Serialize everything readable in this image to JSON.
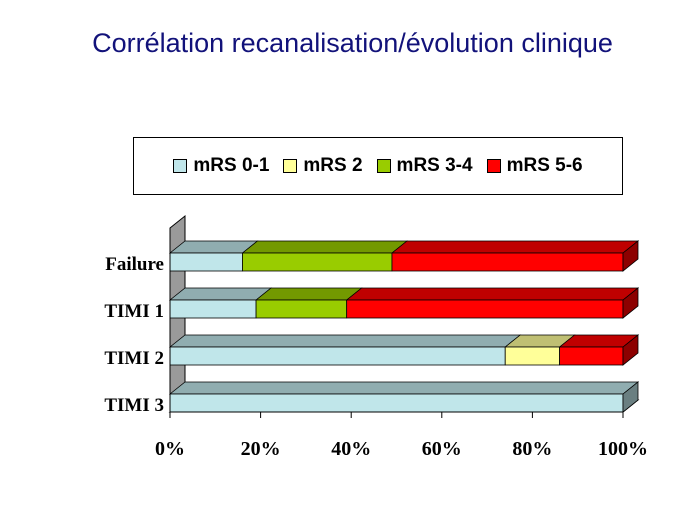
{
  "slide": {
    "title": "Corrélation recanalisation/évolution clinique"
  },
  "chart_data": {
    "type": "bar",
    "orientation": "horizontal",
    "stacked": "percent",
    "three_d": true,
    "legend_position": "top",
    "grid": false,
    "categories": [
      "Failure",
      "TIMI 1",
      "TIMI 2",
      "TIMI 3"
    ],
    "series": [
      {
        "name": "mRS 0-1",
        "color": "#c0e6ea",
        "values": [
          16,
          19,
          74,
          100
        ]
      },
      {
        "name": "mRS 2",
        "color": "#ffff99",
        "values": [
          0,
          0,
          12,
          0
        ]
      },
      {
        "name": "mRS 3-4",
        "color": "#99cc00",
        "values": [
          33,
          20,
          0,
          0
        ]
      },
      {
        "name": "mRS 5-6",
        "color": "#ff0000",
        "values": [
          51,
          61,
          14,
          0
        ]
      }
    ],
    "x_ticks": [
      "0%",
      "20%",
      "40%",
      "60%",
      "80%",
      "100%"
    ],
    "xlim": [
      0,
      100
    ]
  }
}
